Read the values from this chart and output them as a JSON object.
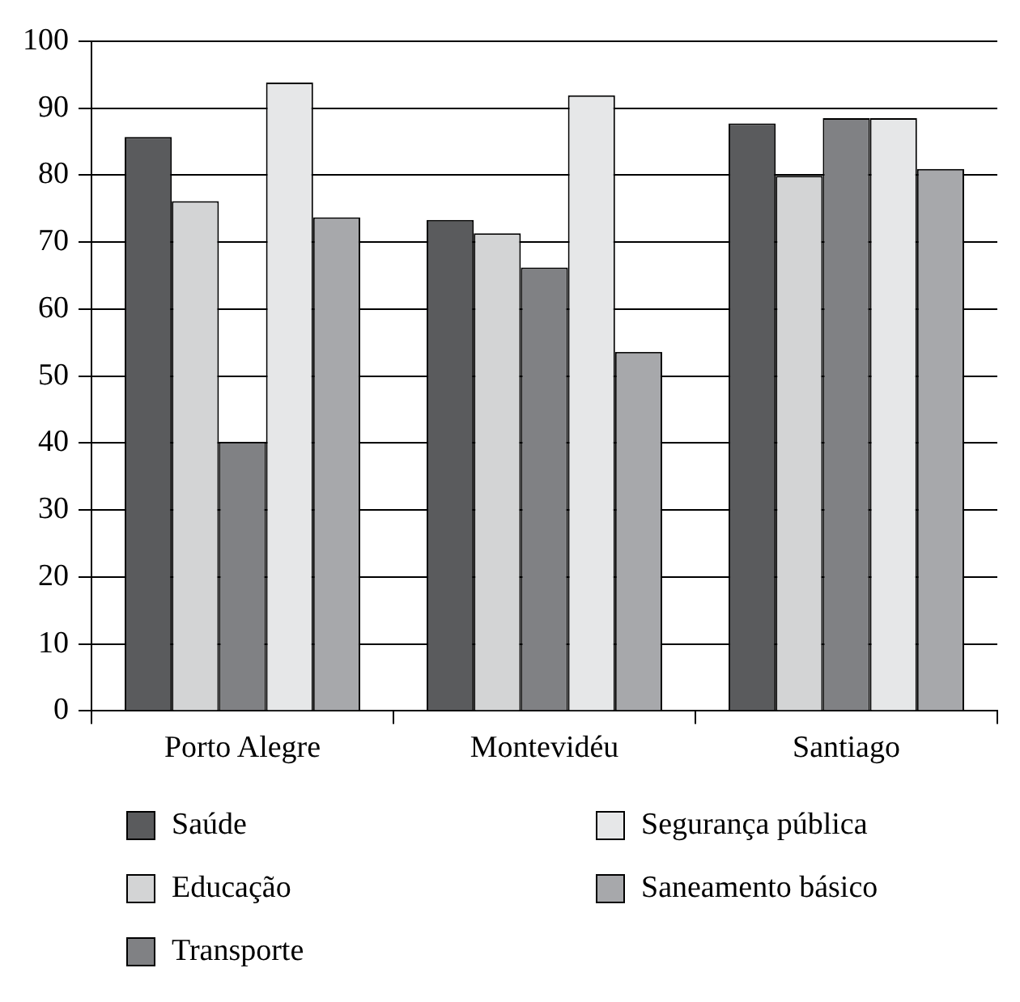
{
  "chart_data": {
    "type": "bar",
    "categories": [
      "Porto Alegre",
      "Montevidéu",
      "Santiago"
    ],
    "series": [
      {
        "name": "Saúde",
        "color": "#5a5b5d",
        "values": [
          85.7,
          73.3,
          87.7
        ]
      },
      {
        "name": "Educação",
        "color": "#d3d4d5",
        "values": [
          76.1,
          71.3,
          79.9
        ]
      },
      {
        "name": "Transporte",
        "color": "#808184",
        "values": [
          40.2,
          66.2,
          88.5
        ]
      },
      {
        "name": "Segurança pública",
        "color": "#e6e7e8",
        "values": [
          93.8,
          91.9,
          88.5
        ]
      },
      {
        "name": "Saneamento básico",
        "color": "#a7a8ab",
        "values": [
          73.7,
          53.6,
          80.9
        ]
      }
    ],
    "ylim": [
      0,
      100
    ],
    "yticks": [
      0,
      10,
      20,
      30,
      40,
      50,
      60,
      70,
      80,
      90,
      100
    ],
    "grid": "y",
    "legend": "bottom"
  }
}
